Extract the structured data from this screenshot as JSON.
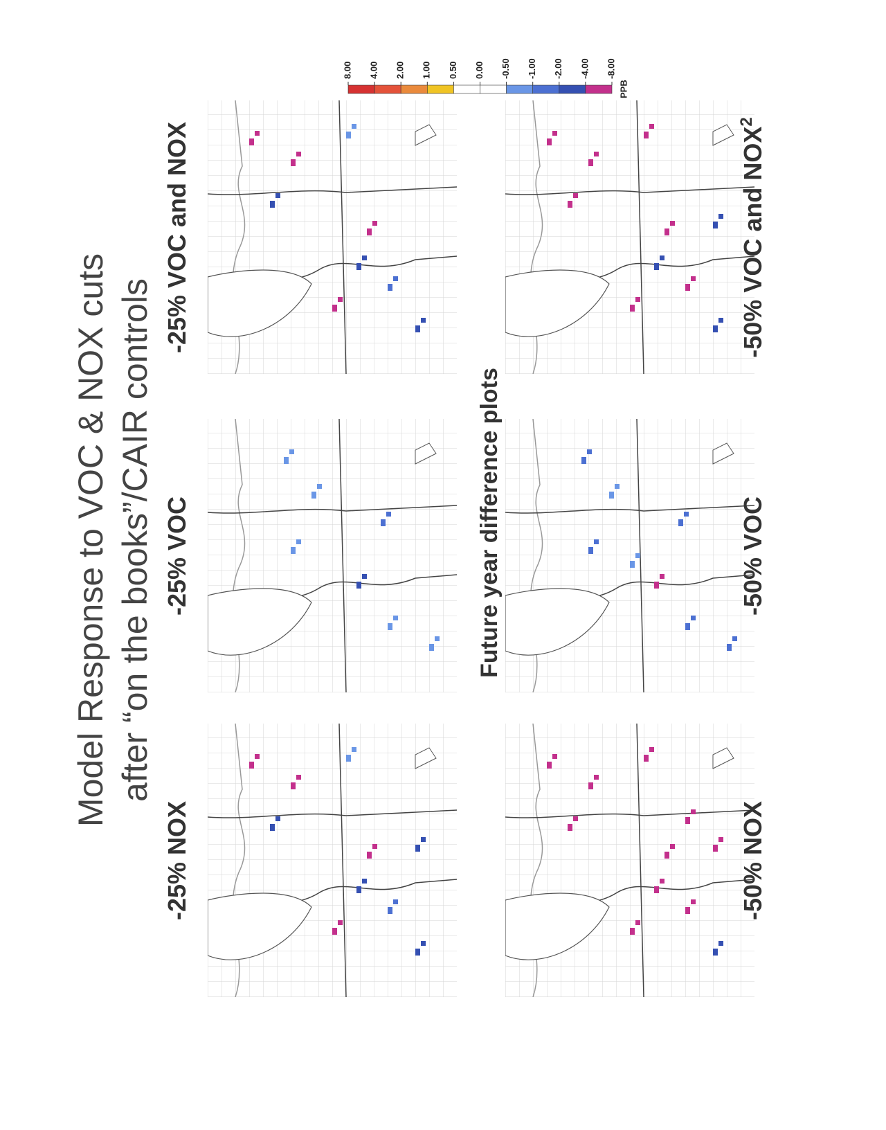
{
  "header": {
    "title_lines": [
      "Model Response to VOC & NOX cuts",
      "after “on the books”/CAIR controls"
    ],
    "subtitle": "Future year difference plots"
  },
  "panels": [
    {
      "label": "-25% NOX"
    },
    {
      "label": "-25% VOC"
    },
    {
      "label": "-25% VOC and NOX"
    },
    {
      "label": "-50% NOX"
    },
    {
      "label": "-50% VOC"
    },
    {
      "label": "-50% VOC and NOX",
      "note": "2"
    }
  ],
  "colorbar": {
    "ticks": [
      {
        "value": 8,
        "label": "8.00"
      },
      {
        "value": 4,
        "label": "4.00"
      },
      {
        "value": 2,
        "label": "2.00"
      },
      {
        "value": 1,
        "label": "1.00"
      },
      {
        "value": 0.5,
        "label": "0.50"
      },
      {
        "value": 0,
        "label": "0.00"
      },
      {
        "value": -0.5,
        "label": "-0.50"
      },
      {
        "value": -1,
        "label": "-1.00"
      },
      {
        "value": -2,
        "label": "-2.00"
      },
      {
        "value": -4,
        "label": "-4.00"
      },
      {
        "value": -8,
        "label": "-8.00"
      }
    ],
    "colors": [
      "#d63232",
      "#e4523a",
      "#ea8a3c",
      "#f0c424",
      "#ffffff",
      "#ffffff",
      "#6a96e6",
      "#4c70d2",
      "#3550b2",
      "#c3308c"
    ],
    "unit": "PPB"
  }
}
